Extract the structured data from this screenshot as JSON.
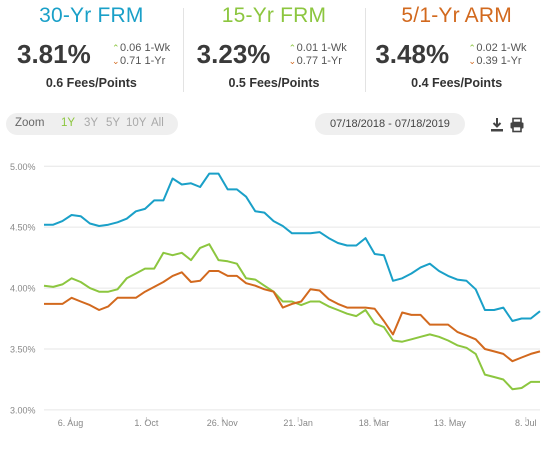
{
  "cards": [
    {
      "title": "30-Yr FRM",
      "color": "#1aa0c8",
      "rate": "3.81%",
      "wk": "0.06 1-Wk",
      "wk_dir": "up",
      "yr": "0.71 1-Yr",
      "yr_dir": "down",
      "fees": "0.6 Fees/Points"
    },
    {
      "title": "15-Yr FRM",
      "color": "#8cc63f",
      "rate": "3.23%",
      "wk": "0.01 1-Wk",
      "wk_dir": "up",
      "yr": "0.77 1-Yr",
      "yr_dir": "down",
      "fees": "0.5 Fees/Points"
    },
    {
      "title": "5/1-Yr ARM",
      "color": "#d2691e",
      "rate": "3.48%",
      "wk": "0.02 1-Wk",
      "wk_dir": "up",
      "yr": "0.39 1-Yr",
      "yr_dir": "down",
      "fees": "0.4 Fees/Points"
    }
  ],
  "toolbar": {
    "zoom_label": "Zoom",
    "zoom_options": [
      "1Y",
      "3Y",
      "5Y",
      "10Y",
      "All"
    ],
    "zoom_active": "1Y",
    "date_range": "07/18/2018 - 07/18/2019",
    "download_icon": "download-icon",
    "print_icon": "print-icon"
  },
  "colors": {
    "up_arrow": "#8cc63f",
    "down_arrow": "#d2691e",
    "grid": "#e6e6e6",
    "axis_text": "#888888"
  },
  "chart_data": {
    "type": "line",
    "x_ticks": [
      "6. Aug",
      "1. Oct",
      "26. Nov",
      "21. Jan",
      "18. Mar",
      "13. May",
      "8. Jul"
    ],
    "y_ticks": [
      "3.00%",
      "3.50%",
      "4.00%",
      "4.50%",
      "5.00%"
    ],
    "ylim": [
      2.95,
      5.15
    ],
    "xlim": [
      0,
      52.3
    ],
    "grid": true,
    "x_tick_positions": [
      2.8,
      10.8,
      18.8,
      26.8,
      34.8,
      42.8,
      50.8
    ],
    "series": [
      {
        "name": "30-Yr FRM",
        "color": "#1aa0c8",
        "values": [
          4.52,
          4.52,
          4.55,
          4.6,
          4.59,
          4.53,
          4.51,
          4.52,
          4.54,
          4.57,
          4.63,
          4.65,
          4.72,
          4.72,
          4.9,
          4.85,
          4.86,
          4.83,
          4.94,
          4.94,
          4.81,
          4.81,
          4.75,
          4.63,
          4.62,
          4.55,
          4.51,
          4.45,
          4.45,
          4.45,
          4.46,
          4.41,
          4.37,
          4.35,
          4.35,
          4.41,
          4.28,
          4.27,
          4.06,
          4.08,
          4.12,
          4.17,
          4.2,
          4.14,
          4.1,
          4.07,
          4.06,
          3.99,
          3.82,
          3.82,
          3.84,
          3.73,
          3.75,
          3.75,
          3.81
        ]
      },
      {
        "name": "15-Yr FRM",
        "color": "#8cc63f",
        "values": [
          4.02,
          4.01,
          4.03,
          4.08,
          4.05,
          4.0,
          3.97,
          3.97,
          3.99,
          4.08,
          4.12,
          4.16,
          4.16,
          4.29,
          4.27,
          4.29,
          4.23,
          4.33,
          4.36,
          4.23,
          4.22,
          4.2,
          4.08,
          4.07,
          4.02,
          3.97,
          3.89,
          3.89,
          3.86,
          3.89,
          3.89,
          3.85,
          3.82,
          3.79,
          3.77,
          3.82,
          3.71,
          3.68,
          3.57,
          3.56,
          3.58,
          3.6,
          3.62,
          3.6,
          3.57,
          3.53,
          3.51,
          3.46,
          3.29,
          3.27,
          3.25,
          3.17,
          3.18,
          3.23,
          3.23
        ]
      },
      {
        "name": "5/1-Yr ARM",
        "color": "#d2691e",
        "values": [
          3.87,
          3.87,
          3.87,
          3.92,
          3.89,
          3.86,
          3.82,
          3.85,
          3.92,
          3.92,
          3.92,
          3.97,
          4.01,
          4.05,
          4.1,
          4.13,
          4.05,
          4.06,
          4.14,
          4.14,
          4.1,
          4.1,
          4.04,
          4.02,
          3.99,
          3.97,
          3.84,
          3.87,
          3.89,
          3.99,
          3.98,
          3.91,
          3.87,
          3.84,
          3.84,
          3.84,
          3.83,
          3.73,
          3.62,
          3.8,
          3.78,
          3.78,
          3.7,
          3.7,
          3.7,
          3.64,
          3.61,
          3.58,
          3.5,
          3.48,
          3.46,
          3.4,
          3.43,
          3.46,
          3.48
        ]
      }
    ]
  }
}
